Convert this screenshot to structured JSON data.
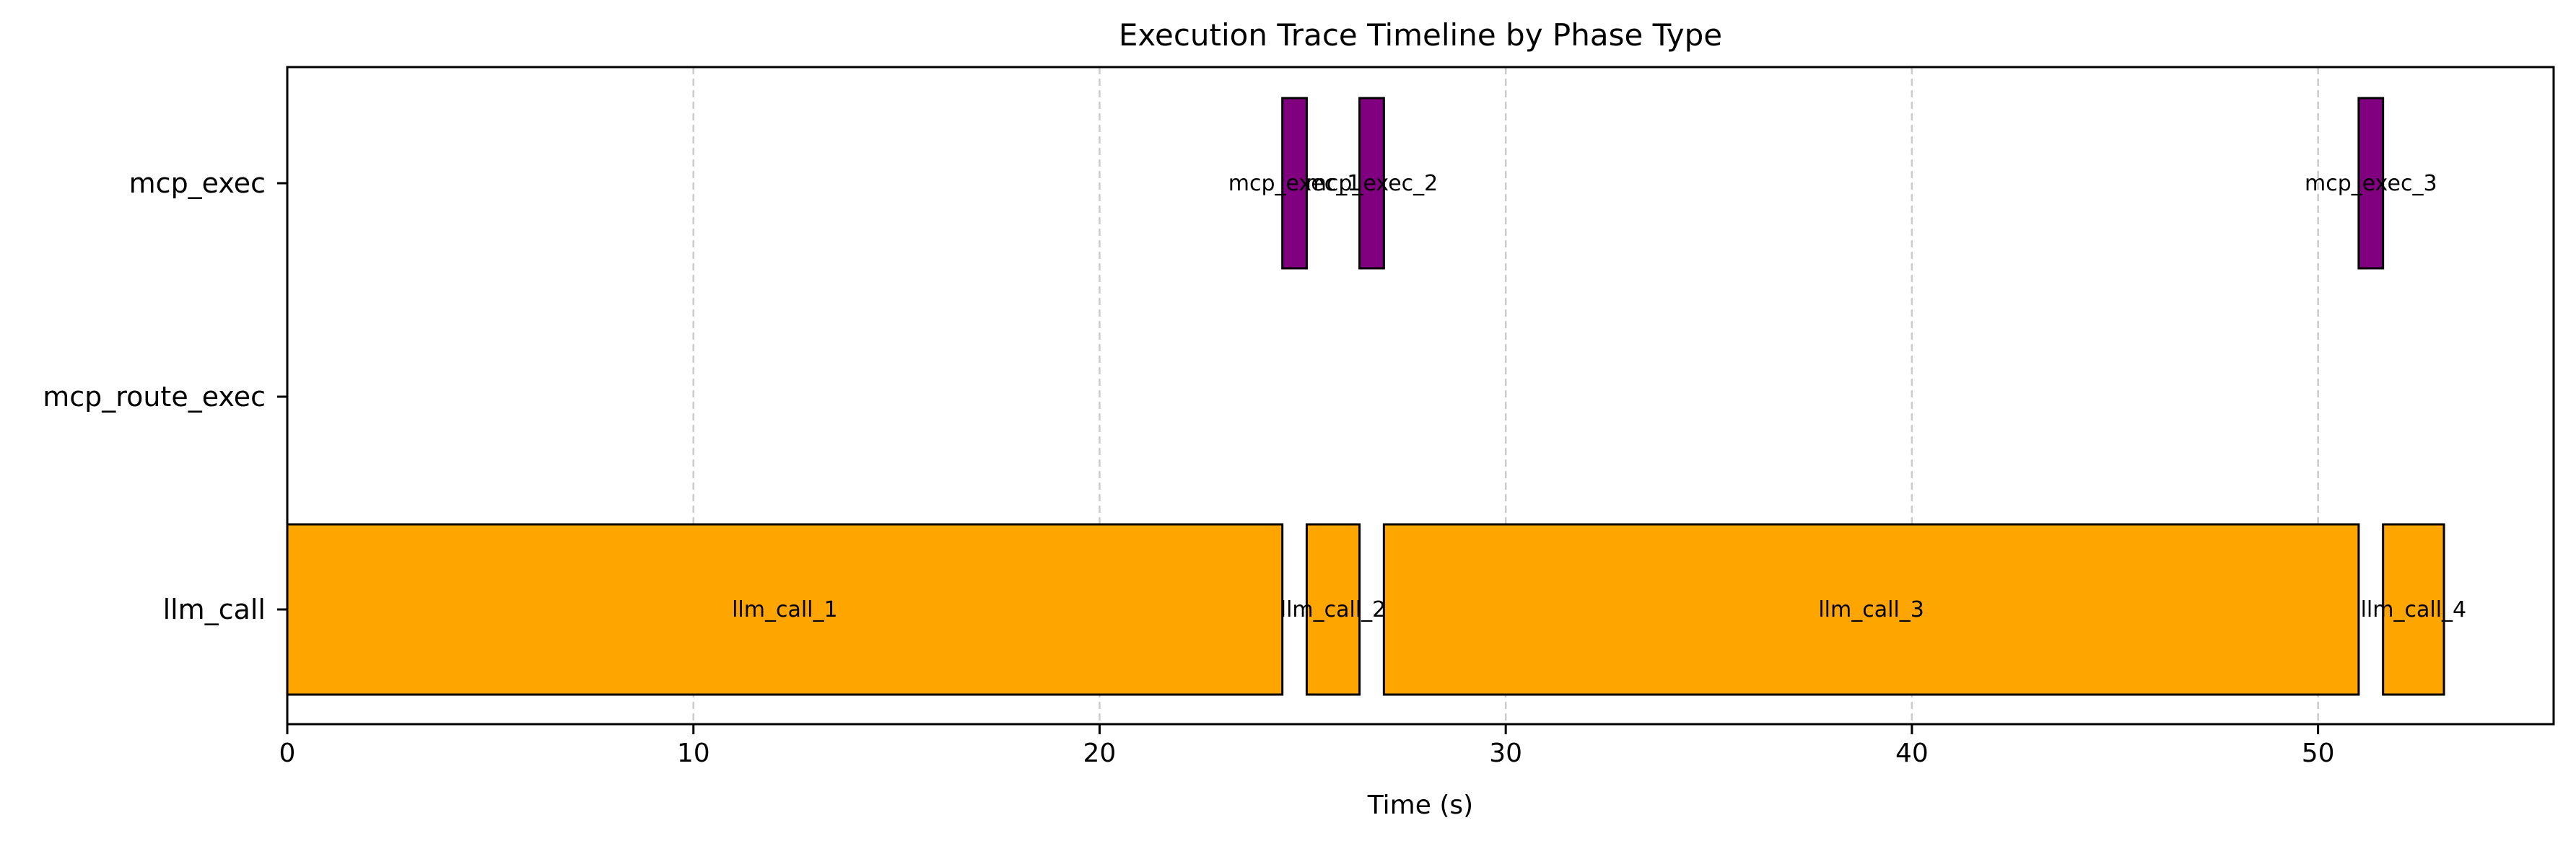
{
  "chart_data": {
    "type": "timeline",
    "title": "Execution Trace Timeline by Phase Type",
    "xlabel": "Time (s)",
    "ylabel": "",
    "xlim": [
      0,
      55.8
    ],
    "xticks": [
      0,
      10,
      20,
      30,
      40,
      50
    ],
    "categories": [
      "llm_call",
      "mcp_route_exec",
      "mcp_exec"
    ],
    "grid": {
      "x": true,
      "y": false,
      "style": "dashed"
    },
    "colors": {
      "llm_call": "#FFA500",
      "mcp_exec": "#800080",
      "edge": "#000000",
      "grid": "#cccccc"
    },
    "segments": [
      {
        "label": "llm_call_1",
        "category": "llm_call",
        "start": 0.0,
        "end": 24.5
      },
      {
        "label": "llm_call_2",
        "category": "llm_call",
        "start": 25.1,
        "end": 26.4
      },
      {
        "label": "llm_call_3",
        "category": "llm_call",
        "start": 27.0,
        "end": 51.0
      },
      {
        "label": "llm_call_4",
        "category": "llm_call",
        "start": 51.6,
        "end": 53.1
      },
      {
        "label": "mcp_exec_1",
        "category": "mcp_exec",
        "start": 24.5,
        "end": 25.1
      },
      {
        "label": "mcp_exec_2",
        "category": "mcp_exec",
        "start": 26.4,
        "end": 27.0
      },
      {
        "label": "mcp_exec_3",
        "category": "mcp_exec",
        "start": 51.0,
        "end": 51.6
      }
    ]
  }
}
